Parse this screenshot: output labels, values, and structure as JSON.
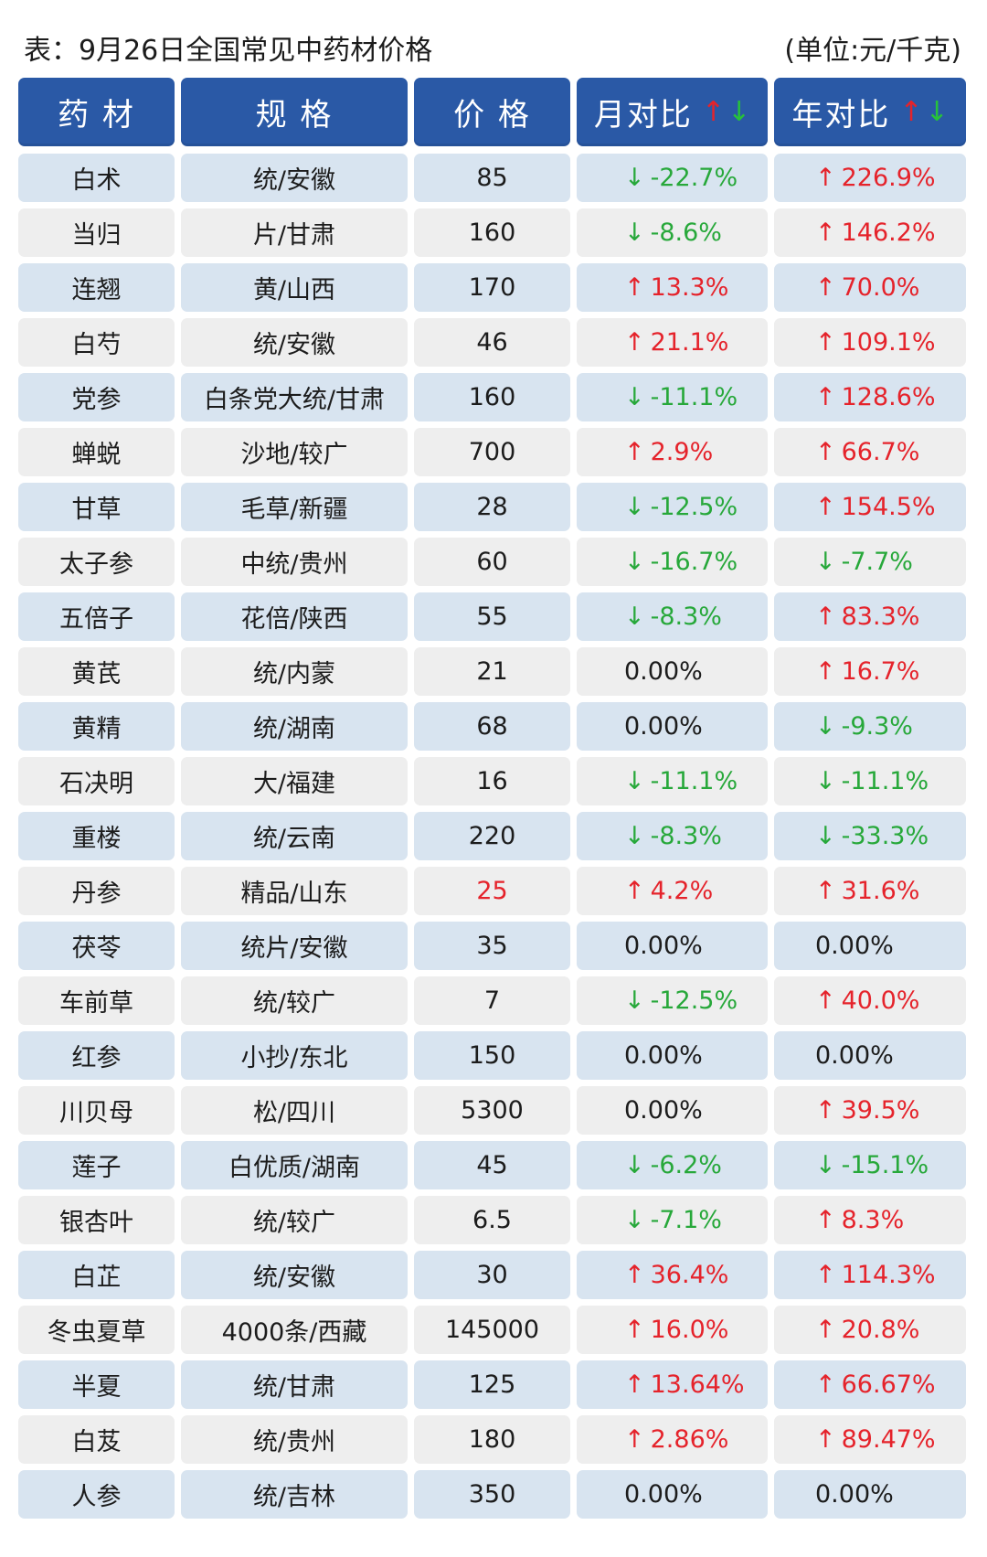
{
  "caption": {
    "title": "表：9月26日全国常见中药材价格",
    "unit": "(单位:元/千克)"
  },
  "headers": [
    "药 材",
    "规 格",
    "价 格",
    "月对比",
    "年对比"
  ],
  "colors": {
    "header_bg": "#2a59a6",
    "row_blue": "#d8e4f0",
    "row_gray": "#eeeeee",
    "up": "#e5232b",
    "down": "#27a83a"
  },
  "icons": {
    "up": "arrow-up-icon",
    "down": "arrow-down-icon",
    "sort": "sort-arrows-icon"
  },
  "rows": [
    {
      "name": "白术",
      "spec": "统/安徽",
      "price": "85",
      "mom": "-22.7%",
      "mom_dir": "down",
      "yoy": "226.9%",
      "yoy_dir": "up"
    },
    {
      "name": "当归",
      "spec": "片/甘肃",
      "price": "160",
      "mom": "-8.6%",
      "mom_dir": "down",
      "yoy": "146.2%",
      "yoy_dir": "up"
    },
    {
      "name": "连翘",
      "spec": "黄/山西",
      "price": "170",
      "mom": "13.3%",
      "mom_dir": "up",
      "yoy": "70.0%",
      "yoy_dir": "up"
    },
    {
      "name": "白芍",
      "spec": "统/安徽",
      "price": "46",
      "mom": "21.1%",
      "mom_dir": "up",
      "yoy": "109.1%",
      "yoy_dir": "up"
    },
    {
      "name": "党参",
      "spec": "白条党大统/甘肃",
      "price": "160",
      "mom": "-11.1%",
      "mom_dir": "down",
      "yoy": "128.6%",
      "yoy_dir": "up"
    },
    {
      "name": "蝉蜕",
      "spec": "沙地/较广",
      "price": "700",
      "mom": "2.9%",
      "mom_dir": "up",
      "yoy": "66.7%",
      "yoy_dir": "up"
    },
    {
      "name": "甘草",
      "spec": "毛草/新疆",
      "price": "28",
      "mom": "-12.5%",
      "mom_dir": "down",
      "yoy": "154.5%",
      "yoy_dir": "up"
    },
    {
      "name": "太子参",
      "spec": "中统/贵州",
      "price": "60",
      "mom": "-16.7%",
      "mom_dir": "down",
      "yoy": "-7.7%",
      "yoy_dir": "down"
    },
    {
      "name": "五倍子",
      "spec": "花倍/陕西",
      "price": "55",
      "mom": "-8.3%",
      "mom_dir": "down",
      "yoy": "83.3%",
      "yoy_dir": "up"
    },
    {
      "name": "黄芪",
      "spec": "统/内蒙",
      "price": "21",
      "mom": "0.00%",
      "mom_dir": "flat",
      "yoy": "16.7%",
      "yoy_dir": "up"
    },
    {
      "name": "黄精",
      "spec": "统/湖南",
      "price": "68",
      "mom": "0.00%",
      "mom_dir": "flat",
      "yoy": "-9.3%",
      "yoy_dir": "down"
    },
    {
      "name": "石决明",
      "spec": "大/福建",
      "price": "16",
      "mom": "-11.1%",
      "mom_dir": "down",
      "yoy": "-11.1%",
      "yoy_dir": "down"
    },
    {
      "name": "重楼",
      "spec": "统/云南",
      "price": "220",
      "mom": "-8.3%",
      "mom_dir": "down",
      "yoy": "-33.3%",
      "yoy_dir": "down"
    },
    {
      "name": "丹参",
      "spec": "精品/山东",
      "price": "25",
      "price_red": true,
      "mom": "4.2%",
      "mom_dir": "up",
      "yoy": "31.6%",
      "yoy_dir": "up"
    },
    {
      "name": "茯苓",
      "spec": "统片/安徽",
      "price": "35",
      "mom": "0.00%",
      "mom_dir": "flat",
      "yoy": "0.00%",
      "yoy_dir": "flat"
    },
    {
      "name": "车前草",
      "spec": "统/较广",
      "price": "7",
      "mom": "-12.5%",
      "mom_dir": "down",
      "yoy": "40.0%",
      "yoy_dir": "up"
    },
    {
      "name": "红参",
      "spec": "小抄/东北",
      "price": "150",
      "mom": "0.00%",
      "mom_dir": "flat",
      "yoy": "0.00%",
      "yoy_dir": "flat"
    },
    {
      "name": "川贝母",
      "spec": "松/四川",
      "price": "5300",
      "mom": "0.00%",
      "mom_dir": "flat",
      "yoy": "39.5%",
      "yoy_dir": "up"
    },
    {
      "name": "莲子",
      "spec": "白优质/湖南",
      "price": "45",
      "mom": "-6.2%",
      "mom_dir": "down",
      "yoy": "-15.1%",
      "yoy_dir": "down"
    },
    {
      "name": "银杏叶",
      "spec": "统/较广",
      "price": "6.5",
      "mom": "-7.1%",
      "mom_dir": "down",
      "yoy": "8.3%",
      "yoy_dir": "up"
    },
    {
      "name": "白芷",
      "spec": "统/安徽",
      "price": "30",
      "mom": "36.4%",
      "mom_dir": "up",
      "yoy": "114.3%",
      "yoy_dir": "up"
    },
    {
      "name": "冬虫夏草",
      "spec": "4000条/西藏",
      "price": "145000",
      "mom": "16.0%",
      "mom_dir": "up",
      "yoy": "20.8%",
      "yoy_dir": "up"
    },
    {
      "name": "半夏",
      "spec": "统/甘肃",
      "price": "125",
      "mom": "13.64%",
      "mom_dir": "up",
      "yoy": "66.67%",
      "yoy_dir": "up"
    },
    {
      "name": "白芨",
      "spec": "统/贵州",
      "price": "180",
      "mom": "2.86%",
      "mom_dir": "up",
      "yoy": "89.47%",
      "yoy_dir": "up"
    },
    {
      "name": "人参",
      "spec": "统/吉林",
      "price": "350",
      "mom": "0.00%",
      "mom_dir": "flat",
      "yoy": "0.00%",
      "yoy_dir": "flat"
    }
  ]
}
